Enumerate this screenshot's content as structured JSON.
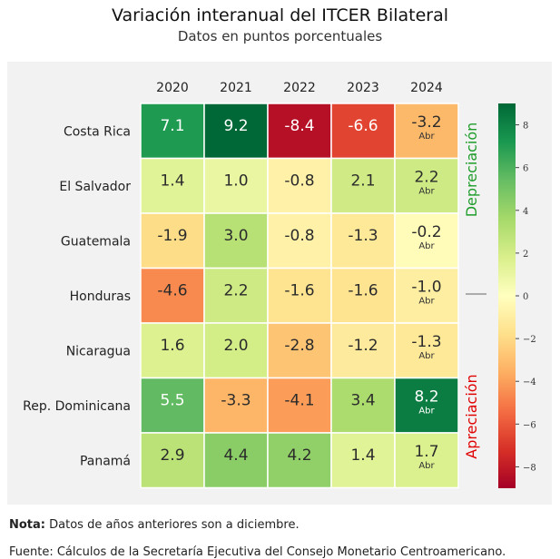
{
  "header": {
    "title": "Variación interanual del ITCER Bilateral",
    "subtitle": "Datos en puntos porcentuales"
  },
  "chart_data": {
    "type": "heatmap",
    "columns": [
      "2020",
      "2021",
      "2022",
      "2023",
      "2024"
    ],
    "rows": [
      "Costa Rica",
      "El Salvador",
      "Guatemala",
      "Honduras",
      "Nicaragua",
      "Rep. Dominicana",
      "Panamá"
    ],
    "values": [
      [
        7.1,
        9.2,
        -8.4,
        -6.6,
        -3.2
      ],
      [
        1.4,
        1.0,
        -0.8,
        2.1,
        2.2
      ],
      [
        -1.9,
        3.0,
        -0.8,
        -1.3,
        -0.2
      ],
      [
        -4.6,
        2.2,
        -1.6,
        -1.6,
        -1.0
      ],
      [
        1.6,
        2.0,
        -2.8,
        -1.2,
        -1.3
      ],
      [
        5.5,
        -3.3,
        -4.1,
        3.4,
        8.2
      ],
      [
        2.9,
        4.4,
        4.2,
        1.4,
        1.7
      ]
    ],
    "cell_labels": [
      "7.1",
      "9.2",
      "-8.4",
      "-6.6",
      "-3.2",
      "1.4",
      "1.0",
      "-0.8",
      "2.1",
      "2.2",
      "-1.9",
      "3.0",
      "-0.8",
      "-1.3",
      "-0.2",
      "-4.6",
      "2.2",
      "-1.6",
      "-1.6",
      "-1.0",
      "1.6",
      "2.0",
      "-2.8",
      "-1.2",
      "-1.3",
      "5.5",
      "-3.3",
      "-4.1",
      "3.4",
      "8.2",
      "2.9",
      "4.4",
      "4.2",
      "1.4",
      "1.7"
    ],
    "last_column_sublabel": "Abr",
    "colorbar": {
      "range": [
        -9,
        9
      ],
      "ticks": [
        8,
        6,
        4,
        2,
        0,
        -2,
        -4,
        -6,
        -8
      ],
      "tick_labels": [
        "8",
        "6",
        "4",
        "2",
        "0",
        "−2",
        "−4",
        "−6",
        "−8"
      ],
      "colormap": "RdYlGn",
      "top_label": "Depreciación",
      "bottom_label": "Apreciación",
      "top_label_color": "#1e9c2a",
      "bottom_label_color": "#e00000"
    }
  },
  "footer": {
    "note_label": "Nota:",
    "note_text": "Datos de años anteriores son a diciembre.",
    "source_text": "Fuente: Cálculos de la Secretaría Ejecutiva del Consejo Monetario Centroamericano."
  }
}
